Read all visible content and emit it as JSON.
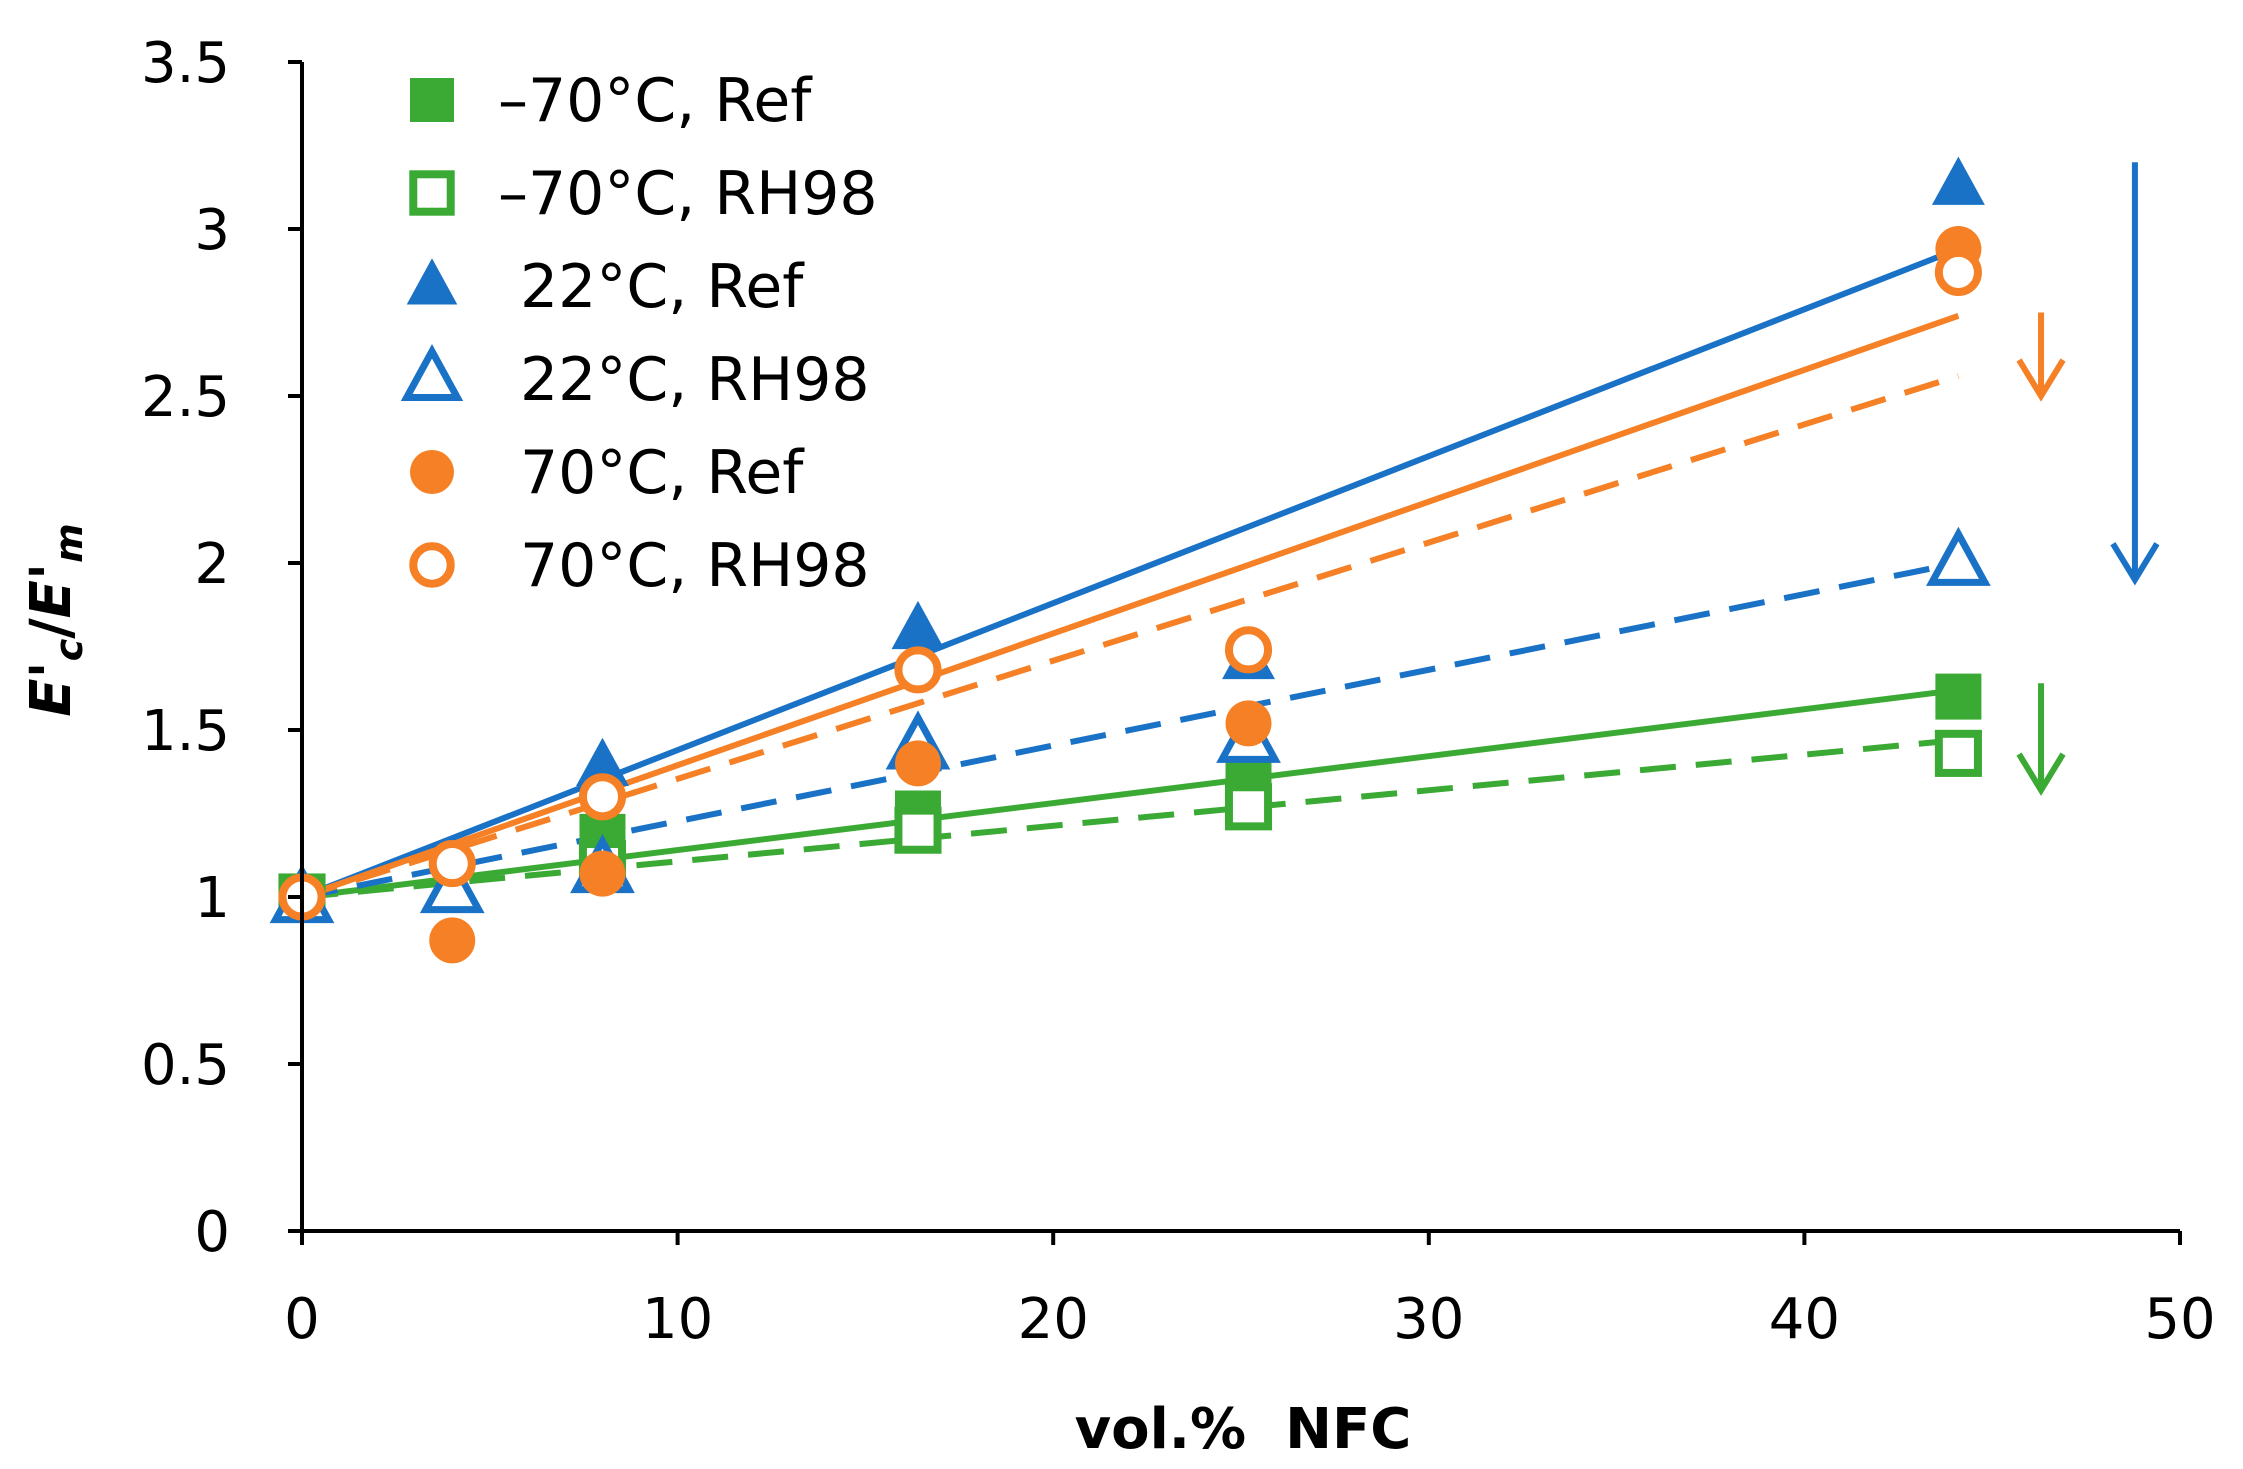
{
  "chart_data": {
    "type": "scatter",
    "title": "",
    "xlabel": "vol.%  NFC",
    "ylabel": "E'c/E'm",
    "xlim": [
      0,
      50
    ],
    "ylim": [
      0,
      3.5
    ],
    "xticks": [
      0,
      10,
      20,
      30,
      40,
      50
    ],
    "yticks": [
      0,
      0.5,
      1,
      1.5,
      2,
      2.5,
      3,
      3.5
    ],
    "ytick_labels": [
      "0",
      "0.5",
      "1",
      "1.5",
      "2",
      "2.5",
      "3",
      "3.5"
    ],
    "grid": false,
    "legend_position": "top-left",
    "colors": {
      "green": "#3aaa35",
      "blue": "#1a72c6",
      "orange": "#f58025"
    },
    "series": [
      {
        "name": "–70°C, Ref",
        "marker": "square",
        "fill": "filled",
        "color": "#3aaa35",
        "x": [
          0,
          8,
          16.4,
          25.2,
          44.1
        ],
        "y": [
          1.0,
          1.18,
          1.25,
          1.37,
          1.6
        ],
        "fit": {
          "style": "solid",
          "x": [
            0,
            44.1
          ],
          "y": [
            1.0,
            1.62
          ]
        }
      },
      {
        "name": "–70°C, RH98",
        "marker": "square",
        "fill": "open",
        "color": "#3aaa35",
        "x": [
          0,
          8,
          16.4,
          25.2,
          44.1
        ],
        "y": [
          1.0,
          1.1,
          1.2,
          1.27,
          1.43
        ],
        "fit": {
          "style": "dashed",
          "x": [
            0,
            44.1
          ],
          "y": [
            1.0,
            1.47
          ]
        }
      },
      {
        "name": "22°C, Ref",
        "marker": "triangle",
        "fill": "filled",
        "color": "#1a72c6",
        "x": [
          0,
          8,
          16.4,
          25.2,
          44.1
        ],
        "y": [
          0.99,
          1.39,
          1.8,
          1.71,
          3.13
        ],
        "fit": {
          "style": "solid",
          "x": [
            0,
            44.1
          ],
          "y": [
            1.0,
            2.94
          ]
        }
      },
      {
        "name": "22°C, RH98",
        "marker": "triangle",
        "fill": "open",
        "color": "#1a72c6",
        "x": [
          0,
          4,
          8,
          16.4,
          25.2,
          44.1
        ],
        "y": [
          0.99,
          1.02,
          1.08,
          1.45,
          1.47,
          2.0
        ],
        "fit": {
          "style": "dashed",
          "x": [
            0,
            44.1
          ],
          "y": [
            1.0,
            2.0
          ]
        }
      },
      {
        "name": "70°C, Ref",
        "marker": "circle",
        "fill": "filled",
        "color": "#f58025",
        "x": [
          0,
          4,
          8,
          16.4,
          25.2,
          44.1
        ],
        "y": [
          1.0,
          0.87,
          1.07,
          1.4,
          1.52,
          2.94
        ],
        "fit": {
          "style": "solid",
          "x": [
            0,
            44.1
          ],
          "y": [
            1.0,
            2.74
          ]
        }
      },
      {
        "name": "70°C, RH98",
        "marker": "circle",
        "fill": "open",
        "color": "#f58025",
        "x": [
          0,
          4,
          8,
          16.4,
          25.2,
          44.1
        ],
        "y": [
          1.0,
          1.1,
          1.3,
          1.68,
          1.74,
          2.87
        ],
        "fit": {
          "style": "dashed",
          "x": [
            0,
            44.1
          ],
          "y": [
            1.0,
            2.56
          ]
        }
      }
    ],
    "annotations": [
      {
        "type": "arrow",
        "direction": "down",
        "color": "#1a72c6",
        "x": 48.8,
        "y_from": 3.2,
        "y_to": 1.95
      },
      {
        "type": "arrow",
        "direction": "down",
        "color": "#f58025",
        "x": 46.3,
        "y_from": 2.75,
        "y_to": 2.5
      },
      {
        "type": "arrow",
        "direction": "down",
        "color": "#3aaa35",
        "x": 46.3,
        "y_from": 1.64,
        "y_to": 1.32
      }
    ]
  }
}
